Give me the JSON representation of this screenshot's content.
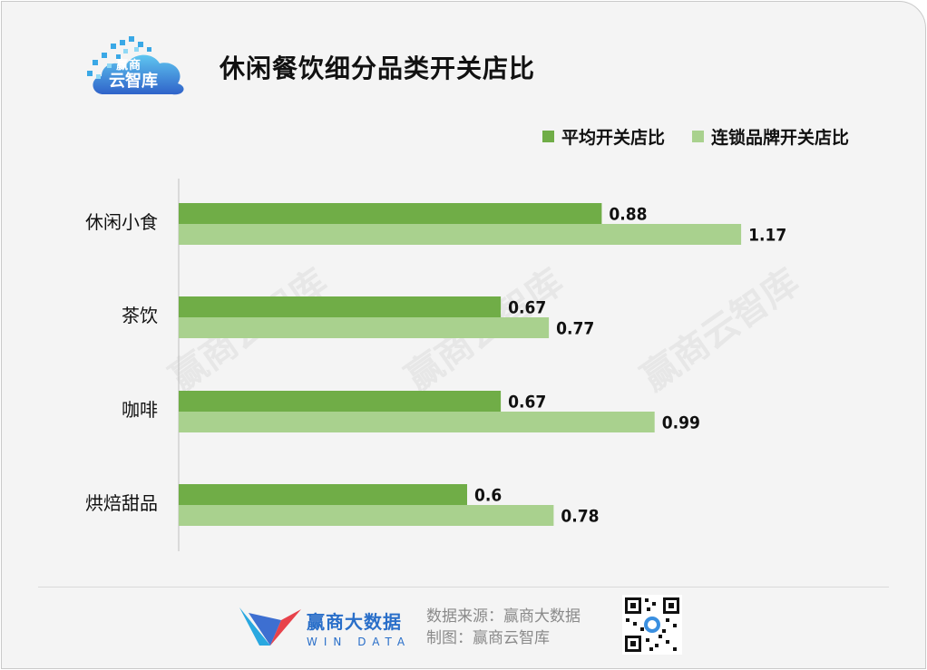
{
  "header": {
    "logo_line1": "赢商",
    "logo_line2": "云智库",
    "title": "休闲餐饮细分品类开关店比"
  },
  "legend": [
    {
      "label": "平均开关店比",
      "color": "#70ad47"
    },
    {
      "label": "连锁品牌开关店比",
      "color": "#a9d18e"
    }
  ],
  "watermark": "赢商云智库",
  "chart_data": {
    "type": "bar",
    "orientation": "horizontal",
    "categories": [
      "休闲小食",
      "茶饮",
      "咖啡",
      "烘焙甜品"
    ],
    "series": [
      {
        "name": "平均开关店比",
        "color": "#70ad47",
        "values": [
          0.88,
          0.67,
          0.67,
          0.6
        ]
      },
      {
        "name": "连锁品牌开关店比",
        "color": "#a9d18e",
        "values": [
          1.17,
          0.77,
          0.99,
          0.78
        ]
      }
    ],
    "xlim": [
      0,
      1.45
    ],
    "data_labels": true,
    "grid": false,
    "legend_position": "top-right"
  },
  "footer": {
    "brand_cn": "赢商大数据",
    "brand_en": "WIN DATA",
    "source": "数据来源：赢商大数据",
    "made_by": "制图：赢商云智库"
  }
}
